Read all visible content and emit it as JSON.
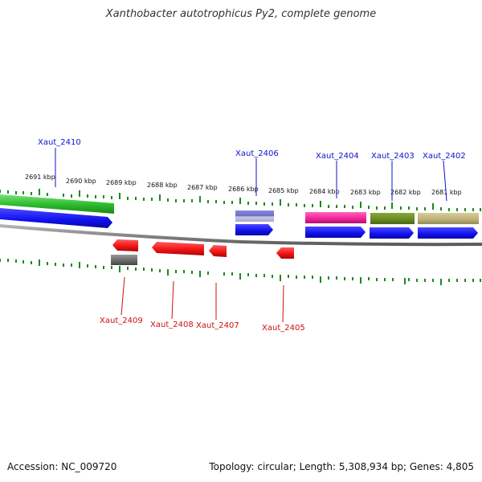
{
  "title": "Xanthobacter autotrophicus Py2, complete genome",
  "accession_text": "Accession: NC_009720",
  "footer_text": "Topology: circular; Length: 5,308,934 bp; Genes: 4,805",
  "colors": {
    "ticks": "#1a8a1a",
    "backbone": "#888888",
    "cds": "#1010ee",
    "label_forward": "#1010cc",
    "label_reverse": "#cc1010",
    "reverse_gene": "#ee1111"
  },
  "scale_labels": [
    "2691 kbp",
    "2690 kbp",
    "2689 kbp",
    "2688 kbp",
    "2687 kbp",
    "2686 kbp",
    "2685 kbp",
    "2684 kbp",
    "2683 kbp",
    "2682 kbp",
    "2681 kbp"
  ],
  "genes_forward": [
    {
      "id": "Xaut_2410",
      "name": "Xaut_2410",
      "color": "#33bb33"
    },
    {
      "id": "Xaut_2406",
      "name": "Xaut_2406",
      "color": "#7777cc"
    },
    {
      "id": "Xaut_2404",
      "name": "Xaut_2404",
      "color": "#ee2299"
    },
    {
      "id": "Xaut_2403",
      "name": "Xaut_2403",
      "color": "#668822"
    },
    {
      "id": "Xaut_2402",
      "name": "Xaut_2402",
      "color": "#bbb077"
    }
  ],
  "genes_reverse": [
    {
      "id": "Xaut_2409",
      "name": "Xaut_2409",
      "color": "#666666"
    },
    {
      "id": "Xaut_2408",
      "name": "Xaut_2408",
      "color": "#ee1111"
    },
    {
      "id": "Xaut_2407",
      "name": "Xaut_2407",
      "color": "#ee1111"
    },
    {
      "id": "Xaut_2405",
      "name": "Xaut_2405",
      "color": "#ee1111"
    }
  ]
}
